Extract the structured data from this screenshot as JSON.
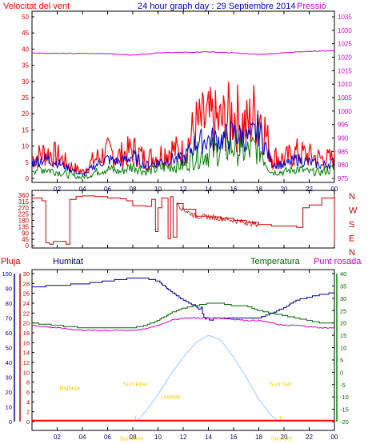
{
  "header": {
    "left_title": "Velocitat del vent",
    "center_title": "24 hour graph day : 29 Septiembre 2014",
    "right_title": "Pressió"
  },
  "colors": {
    "wind_gust": "#ff0000",
    "wind_avg": "#0000cc",
    "wind_green": "#008000",
    "pressure": "#cc00cc",
    "direction": "#cc0000",
    "humidity": "#000099",
    "temperature": "#006600",
    "dewpoint": "#cc00cc",
    "rain": "#ff0000",
    "solar": "#99ccff",
    "sun_labels": "#ffcc00",
    "grid": "#000000"
  },
  "chart_data": [
    {
      "id": "wind_pressure",
      "type": "line",
      "x_ticks": [
        "02",
        "04",
        "06",
        "08",
        "10",
        "12",
        "14",
        "16",
        "18",
        "20",
        "22",
        "00"
      ],
      "y_left": {
        "label": "Velocitat del vent",
        "min": 0,
        "max": 50,
        "ticks": [
          0,
          5,
          10,
          15,
          20,
          25,
          30,
          35,
          40,
          45,
          50
        ]
      },
      "y_right": {
        "label": "Pressió",
        "min": 975,
        "max": 1035,
        "ticks": [
          975,
          980,
          985,
          990,
          995,
          1000,
          1005,
          1010,
          1015,
          1020,
          1025,
          1030,
          1035
        ]
      },
      "series": [
        {
          "key": "gust",
          "hours": [
            0,
            1,
            2,
            3,
            4,
            5,
            6,
            7,
            8,
            9,
            10,
            11,
            12,
            13,
            14,
            15,
            16,
            17,
            18,
            19,
            20,
            21,
            22,
            23,
            24
          ],
          "values": [
            6,
            8,
            7,
            4,
            2,
            6,
            8,
            7,
            9,
            6,
            7,
            9,
            8,
            16,
            18,
            17,
            20,
            16,
            22,
            7,
            6,
            8,
            7,
            6,
            6
          ]
        },
        {
          "key": "avg",
          "hours": [
            0,
            1,
            2,
            3,
            4,
            5,
            6,
            7,
            8,
            9,
            10,
            11,
            12,
            13,
            14,
            15,
            16,
            17,
            18,
            19,
            20,
            21,
            22,
            23,
            24
          ],
          "values": [
            5,
            6,
            5,
            3,
            1,
            4,
            6,
            5,
            7,
            4,
            5,
            6,
            6,
            11,
            12,
            12,
            14,
            12,
            15,
            5,
            4,
            6,
            5,
            4,
            5
          ]
        },
        {
          "key": "lull",
          "hours": [
            0,
            1,
            2,
            3,
            4,
            5,
            6,
            7,
            8,
            9,
            10,
            11,
            12,
            13,
            14,
            15,
            16,
            17,
            18,
            19,
            20,
            21,
            22,
            23,
            24
          ],
          "values": [
            3,
            3,
            2,
            1,
            0,
            2,
            3,
            2,
            4,
            2,
            3,
            4,
            4,
            7,
            8,
            9,
            10,
            8,
            10,
            2,
            2,
            3,
            2,
            2,
            3
          ]
        },
        {
          "key": "pressure",
          "hours": [
            0,
            2,
            4,
            6,
            8,
            10,
            12,
            14,
            16,
            18,
            20,
            22,
            24
          ],
          "values": [
            1021.6,
            1021.4,
            1021.4,
            1021.3,
            1020.8,
            1021.6,
            1021.8,
            1022.0,
            1021.6,
            1021.0,
            1021.6,
            1022.2,
            1022.4
          ]
        }
      ]
    },
    {
      "id": "wind_direction",
      "type": "line",
      "x_ticks": [
        "02",
        "04",
        "06",
        "08",
        "10",
        "12",
        "14",
        "16",
        "18",
        "20",
        "22",
        "00"
      ],
      "y_left": {
        "min": 0,
        "max": 360,
        "ticks": [
          0,
          45,
          90,
          135,
          180,
          225,
          270,
          315,
          360
        ]
      },
      "y_right_labels": [
        "N",
        "W",
        "S",
        "E",
        "N"
      ],
      "series": [
        {
          "key": "direction",
          "hours": [
            0,
            0.8,
            1.1,
            1.4,
            1.7,
            2.7,
            3.0,
            3.5,
            4.0,
            5.0,
            6.0,
            7.0,
            7.5,
            8.0,
            9.0,
            9.5,
            9.8,
            10.0,
            10.3,
            10.8,
            11.0,
            11.2,
            11.5,
            12.0,
            13.0,
            14.0,
            15.0,
            16.0,
            17.0,
            18.0,
            19.0,
            20.0,
            21.0,
            21.5,
            22.0,
            23.0,
            23.8,
            24.0
          ],
          "values": [
            340,
            320,
            20,
            10,
            30,
            10,
            330,
            350,
            355,
            350,
            340,
            335,
            320,
            285,
            280,
            330,
            100,
            270,
            340,
            50,
            350,
            60,
            300,
            260,
            210,
            205,
            195,
            180,
            165,
            150,
            140,
            140,
            130,
            270,
            290,
            340,
            340,
            10
          ]
        }
      ]
    },
    {
      "id": "humidity_temperature",
      "type": "line",
      "x_ticks": [
        "02",
        "04",
        "06",
        "08",
        "10",
        "12",
        "14",
        "16",
        "18",
        "20",
        "22",
        "00"
      ],
      "y_left_outer": {
        "label": "Humitat",
        "min": 0,
        "max": 100,
        "ticks": [
          0,
          10,
          20,
          30,
          40,
          50,
          60,
          70,
          80,
          90,
          100
        ]
      },
      "y_left_inner": {
        "label": "Pluja",
        "min": 0,
        "max": 30,
        "ticks": [
          0,
          2,
          4,
          6,
          8,
          10,
          12,
          14,
          16,
          18,
          20,
          22,
          24,
          26,
          28,
          30
        ]
      },
      "y_right": {
        "label": "Temperatura",
        "min": -20,
        "max": 40,
        "ticks": [
          -20,
          -15,
          -10,
          -5,
          0,
          5,
          10,
          15,
          20,
          25,
          30,
          35,
          40
        ]
      },
      "right_label2": "Punt rosada",
      "series": [
        {
          "key": "humidity",
          "hours": [
            0,
            2,
            4,
            6,
            8,
            9,
            10,
            11,
            12,
            13,
            14,
            15,
            16,
            17,
            18,
            19,
            20,
            21,
            22,
            23,
            24
          ],
          "values": [
            91,
            92,
            93,
            95,
            97,
            97,
            95,
            88,
            82,
            78,
            70,
            70,
            70,
            70,
            70,
            73,
            77,
            82,
            84,
            86,
            87
          ]
        },
        {
          "key": "temperature",
          "hours": [
            0,
            2,
            4,
            6,
            8,
            9,
            10,
            11,
            12,
            13,
            14,
            15,
            16,
            17,
            18,
            19,
            20,
            21,
            22,
            23,
            24
          ],
          "values": [
            20,
            19,
            18,
            18,
            18,
            19,
            21,
            24,
            26,
            27,
            28,
            28,
            27,
            27,
            25,
            24,
            23,
            22,
            21,
            20,
            20
          ]
        },
        {
          "key": "dewpoint",
          "hours": [
            0,
            2,
            4,
            6,
            8,
            9,
            10,
            11,
            12,
            13,
            14,
            15,
            16,
            17,
            18,
            19,
            20,
            21,
            22,
            23,
            24
          ],
          "values": [
            19,
            18,
            17,
            17,
            17,
            17.5,
            19,
            21,
            22,
            22,
            22,
            22,
            21.5,
            21,
            21,
            20,
            19,
            19,
            18.5,
            18,
            18
          ]
        },
        {
          "key": "solar",
          "hours": [
            8.3,
            9,
            10,
            11,
            12,
            13,
            14,
            15,
            16,
            17,
            18,
            19,
            19.6
          ],
          "values": [
            0,
            2,
            5.5,
            9.5,
            13,
            16,
            17.5,
            16.5,
            13,
            9,
            4.5,
            1.2,
            0
          ]
        },
        {
          "key": "rain",
          "hours": [
            0,
            24
          ],
          "values": [
            0.2,
            0.2
          ]
        }
      ],
      "annotations": [
        {
          "text": "Bajfada",
          "hour": 3.0,
          "value": 6.4
        },
        {
          "text": "Sun Rise",
          "hour": 8.2,
          "value": 7.2
        },
        {
          "text": "Lowtide",
          "hour": 11.0,
          "value": 4.6
        },
        {
          "text": "Sun Set",
          "hour": 19.7,
          "value": 7.2
        },
        {
          "text": "Sun Rise",
          "hour": 7.9,
          "value": -3.8
        },
        {
          "text": "Sun Set",
          "hour": 19.8,
          "value": -3.8
        }
      ]
    }
  ]
}
